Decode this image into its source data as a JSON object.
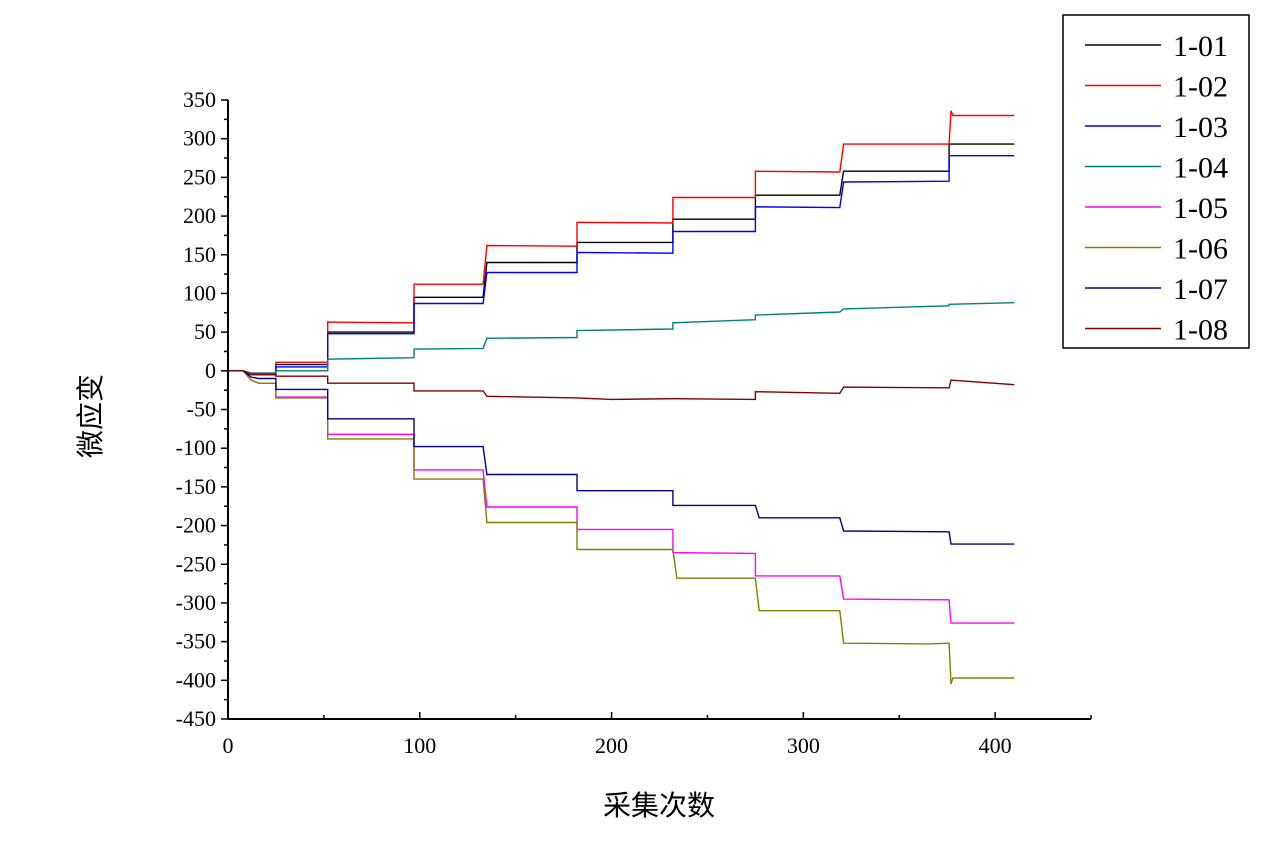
{
  "chart_data": {
    "type": "line",
    "title": "",
    "xlabel": "采集次数",
    "ylabel": "微应变",
    "xlim": [
      0,
      450
    ],
    "ylim": [
      -450,
      350
    ],
    "xticks": [
      0,
      100,
      200,
      300,
      400
    ],
    "yticks": [
      350,
      300,
      250,
      200,
      150,
      100,
      50,
      0,
      -50,
      -100,
      -150,
      -200,
      -250,
      -300,
      -350,
      -400,
      -450
    ],
    "legend_position": "top-right",
    "series": [
      {
        "name": "1-01",
        "color": "#000000",
        "points": [
          [
            0,
            0
          ],
          [
            8,
            0
          ],
          [
            12,
            -4
          ],
          [
            25,
            -4
          ],
          [
            25,
            8
          ],
          [
            52,
            8
          ],
          [
            52,
            50
          ],
          [
            97,
            50
          ],
          [
            97,
            95
          ],
          [
            133,
            95
          ],
          [
            135,
            140
          ],
          [
            182,
            140
          ],
          [
            182,
            166
          ],
          [
            232,
            166
          ],
          [
            232,
            196
          ],
          [
            275,
            196
          ],
          [
            275,
            227
          ],
          [
            319,
            227
          ],
          [
            321,
            258
          ],
          [
            376,
            258
          ],
          [
            376,
            293
          ],
          [
            410,
            293
          ]
        ]
      },
      {
        "name": "1-02",
        "color": "#ff0000",
        "points": [
          [
            0,
            0
          ],
          [
            8,
            0
          ],
          [
            12,
            -3
          ],
          [
            25,
            -3
          ],
          [
            25,
            11
          ],
          [
            52,
            11
          ],
          [
            52,
            63
          ],
          [
            97,
            62
          ],
          [
            97,
            112
          ],
          [
            133,
            112
          ],
          [
            135,
            162
          ],
          [
            182,
            161
          ],
          [
            182,
            192
          ],
          [
            232,
            191
          ],
          [
            232,
            224
          ],
          [
            275,
            224
          ],
          [
            275,
            258
          ],
          [
            319,
            257
          ],
          [
            321,
            293
          ],
          [
            376,
            293
          ],
          [
            377,
            336
          ],
          [
            378,
            330
          ],
          [
            410,
            330
          ]
        ]
      },
      {
        "name": "1-03",
        "color": "#0000ff",
        "points": [
          [
            0,
            0
          ],
          [
            8,
            0
          ],
          [
            12,
            -5
          ],
          [
            25,
            -5
          ],
          [
            25,
            5
          ],
          [
            52,
            5
          ],
          [
            52,
            48
          ],
          [
            97,
            48
          ],
          [
            97,
            87
          ],
          [
            133,
            87
          ],
          [
            135,
            127
          ],
          [
            182,
            127
          ],
          [
            182,
            153
          ],
          [
            232,
            152
          ],
          [
            232,
            180
          ],
          [
            275,
            180
          ],
          [
            275,
            212
          ],
          [
            319,
            211
          ],
          [
            321,
            244
          ],
          [
            376,
            245
          ],
          [
            376,
            278
          ],
          [
            410,
            278
          ]
        ]
      },
      {
        "name": "1-04",
        "color": "#008080",
        "points": [
          [
            0,
            0
          ],
          [
            8,
            0
          ],
          [
            12,
            -3
          ],
          [
            25,
            -3
          ],
          [
            25,
            0
          ],
          [
            52,
            0
          ],
          [
            52,
            15
          ],
          [
            97,
            17
          ],
          [
            97,
            28
          ],
          [
            133,
            29
          ],
          [
            135,
            42
          ],
          [
            182,
            43
          ],
          [
            182,
            52
          ],
          [
            232,
            54
          ],
          [
            232,
            62
          ],
          [
            275,
            66
          ],
          [
            275,
            72
          ],
          [
            319,
            76
          ],
          [
            321,
            80
          ],
          [
            376,
            84
          ],
          [
            376,
            86
          ],
          [
            410,
            88
          ]
        ]
      },
      {
        "name": "1-05",
        "color": "#ff00ff",
        "points": [
          [
            0,
            0
          ],
          [
            8,
            0
          ],
          [
            12,
            -12
          ],
          [
            16,
            -16
          ],
          [
            25,
            -16
          ],
          [
            25,
            -34
          ],
          [
            52,
            -34
          ],
          [
            52,
            -82
          ],
          [
            97,
            -82
          ],
          [
            97,
            -128
          ],
          [
            133,
            -128
          ],
          [
            135,
            -176
          ],
          [
            182,
            -176
          ],
          [
            182,
            -205
          ],
          [
            232,
            -205
          ],
          [
            232,
            -235
          ],
          [
            275,
            -236
          ],
          [
            275,
            -265
          ],
          [
            319,
            -265
          ],
          [
            321,
            -295
          ],
          [
            376,
            -296
          ],
          [
            377,
            -326
          ],
          [
            410,
            -326
          ]
        ]
      },
      {
        "name": "1-06",
        "color": "#808000",
        "points": [
          [
            0,
            0
          ],
          [
            8,
            0
          ],
          [
            12,
            -12
          ],
          [
            16,
            -16
          ],
          [
            25,
            -16
          ],
          [
            25,
            -35
          ],
          [
            52,
            -35
          ],
          [
            52,
            -88
          ],
          [
            97,
            -88
          ],
          [
            97,
            -140
          ],
          [
            133,
            -140
          ],
          [
            135,
            -196
          ],
          [
            182,
            -196
          ],
          [
            182,
            -231
          ],
          [
            232,
            -231
          ],
          [
            234,
            -268
          ],
          [
            275,
            -268
          ],
          [
            277,
            -310
          ],
          [
            319,
            -310
          ],
          [
            321,
            -352
          ],
          [
            365,
            -353
          ],
          [
            376,
            -352
          ],
          [
            377,
            -405
          ],
          [
            378,
            -397
          ],
          [
            410,
            -397
          ]
        ]
      },
      {
        "name": "1-07",
        "color": "#00008b",
        "points": [
          [
            0,
            0
          ],
          [
            8,
            0
          ],
          [
            12,
            -8
          ],
          [
            16,
            -10
          ],
          [
            25,
            -10
          ],
          [
            25,
            -24
          ],
          [
            52,
            -24
          ],
          [
            52,
            -62
          ],
          [
            97,
            -62
          ],
          [
            97,
            -98
          ],
          [
            133,
            -98
          ],
          [
            135,
            -134
          ],
          [
            182,
            -134
          ],
          [
            182,
            -155
          ],
          [
            232,
            -155
          ],
          [
            232,
            -174
          ],
          [
            275,
            -174
          ],
          [
            277,
            -190
          ],
          [
            319,
            -190
          ],
          [
            321,
            -207
          ],
          [
            376,
            -208
          ],
          [
            377,
            -224
          ],
          [
            410,
            -224
          ]
        ]
      },
      {
        "name": "1-08",
        "color": "#800000",
        "points": [
          [
            0,
            0
          ],
          [
            8,
            0
          ],
          [
            12,
            -5
          ],
          [
            25,
            -5
          ],
          [
            25,
            -7
          ],
          [
            52,
            -7
          ],
          [
            52,
            -16
          ],
          [
            97,
            -16
          ],
          [
            97,
            -26
          ],
          [
            133,
            -26
          ],
          [
            135,
            -33
          ],
          [
            182,
            -35
          ],
          [
            200,
            -37
          ],
          [
            232,
            -36
          ],
          [
            275,
            -37
          ],
          [
            275,
            -27
          ],
          [
            319,
            -29
          ],
          [
            321,
            -21
          ],
          [
            376,
            -22
          ],
          [
            377,
            -12
          ],
          [
            410,
            -18
          ]
        ]
      }
    ]
  }
}
